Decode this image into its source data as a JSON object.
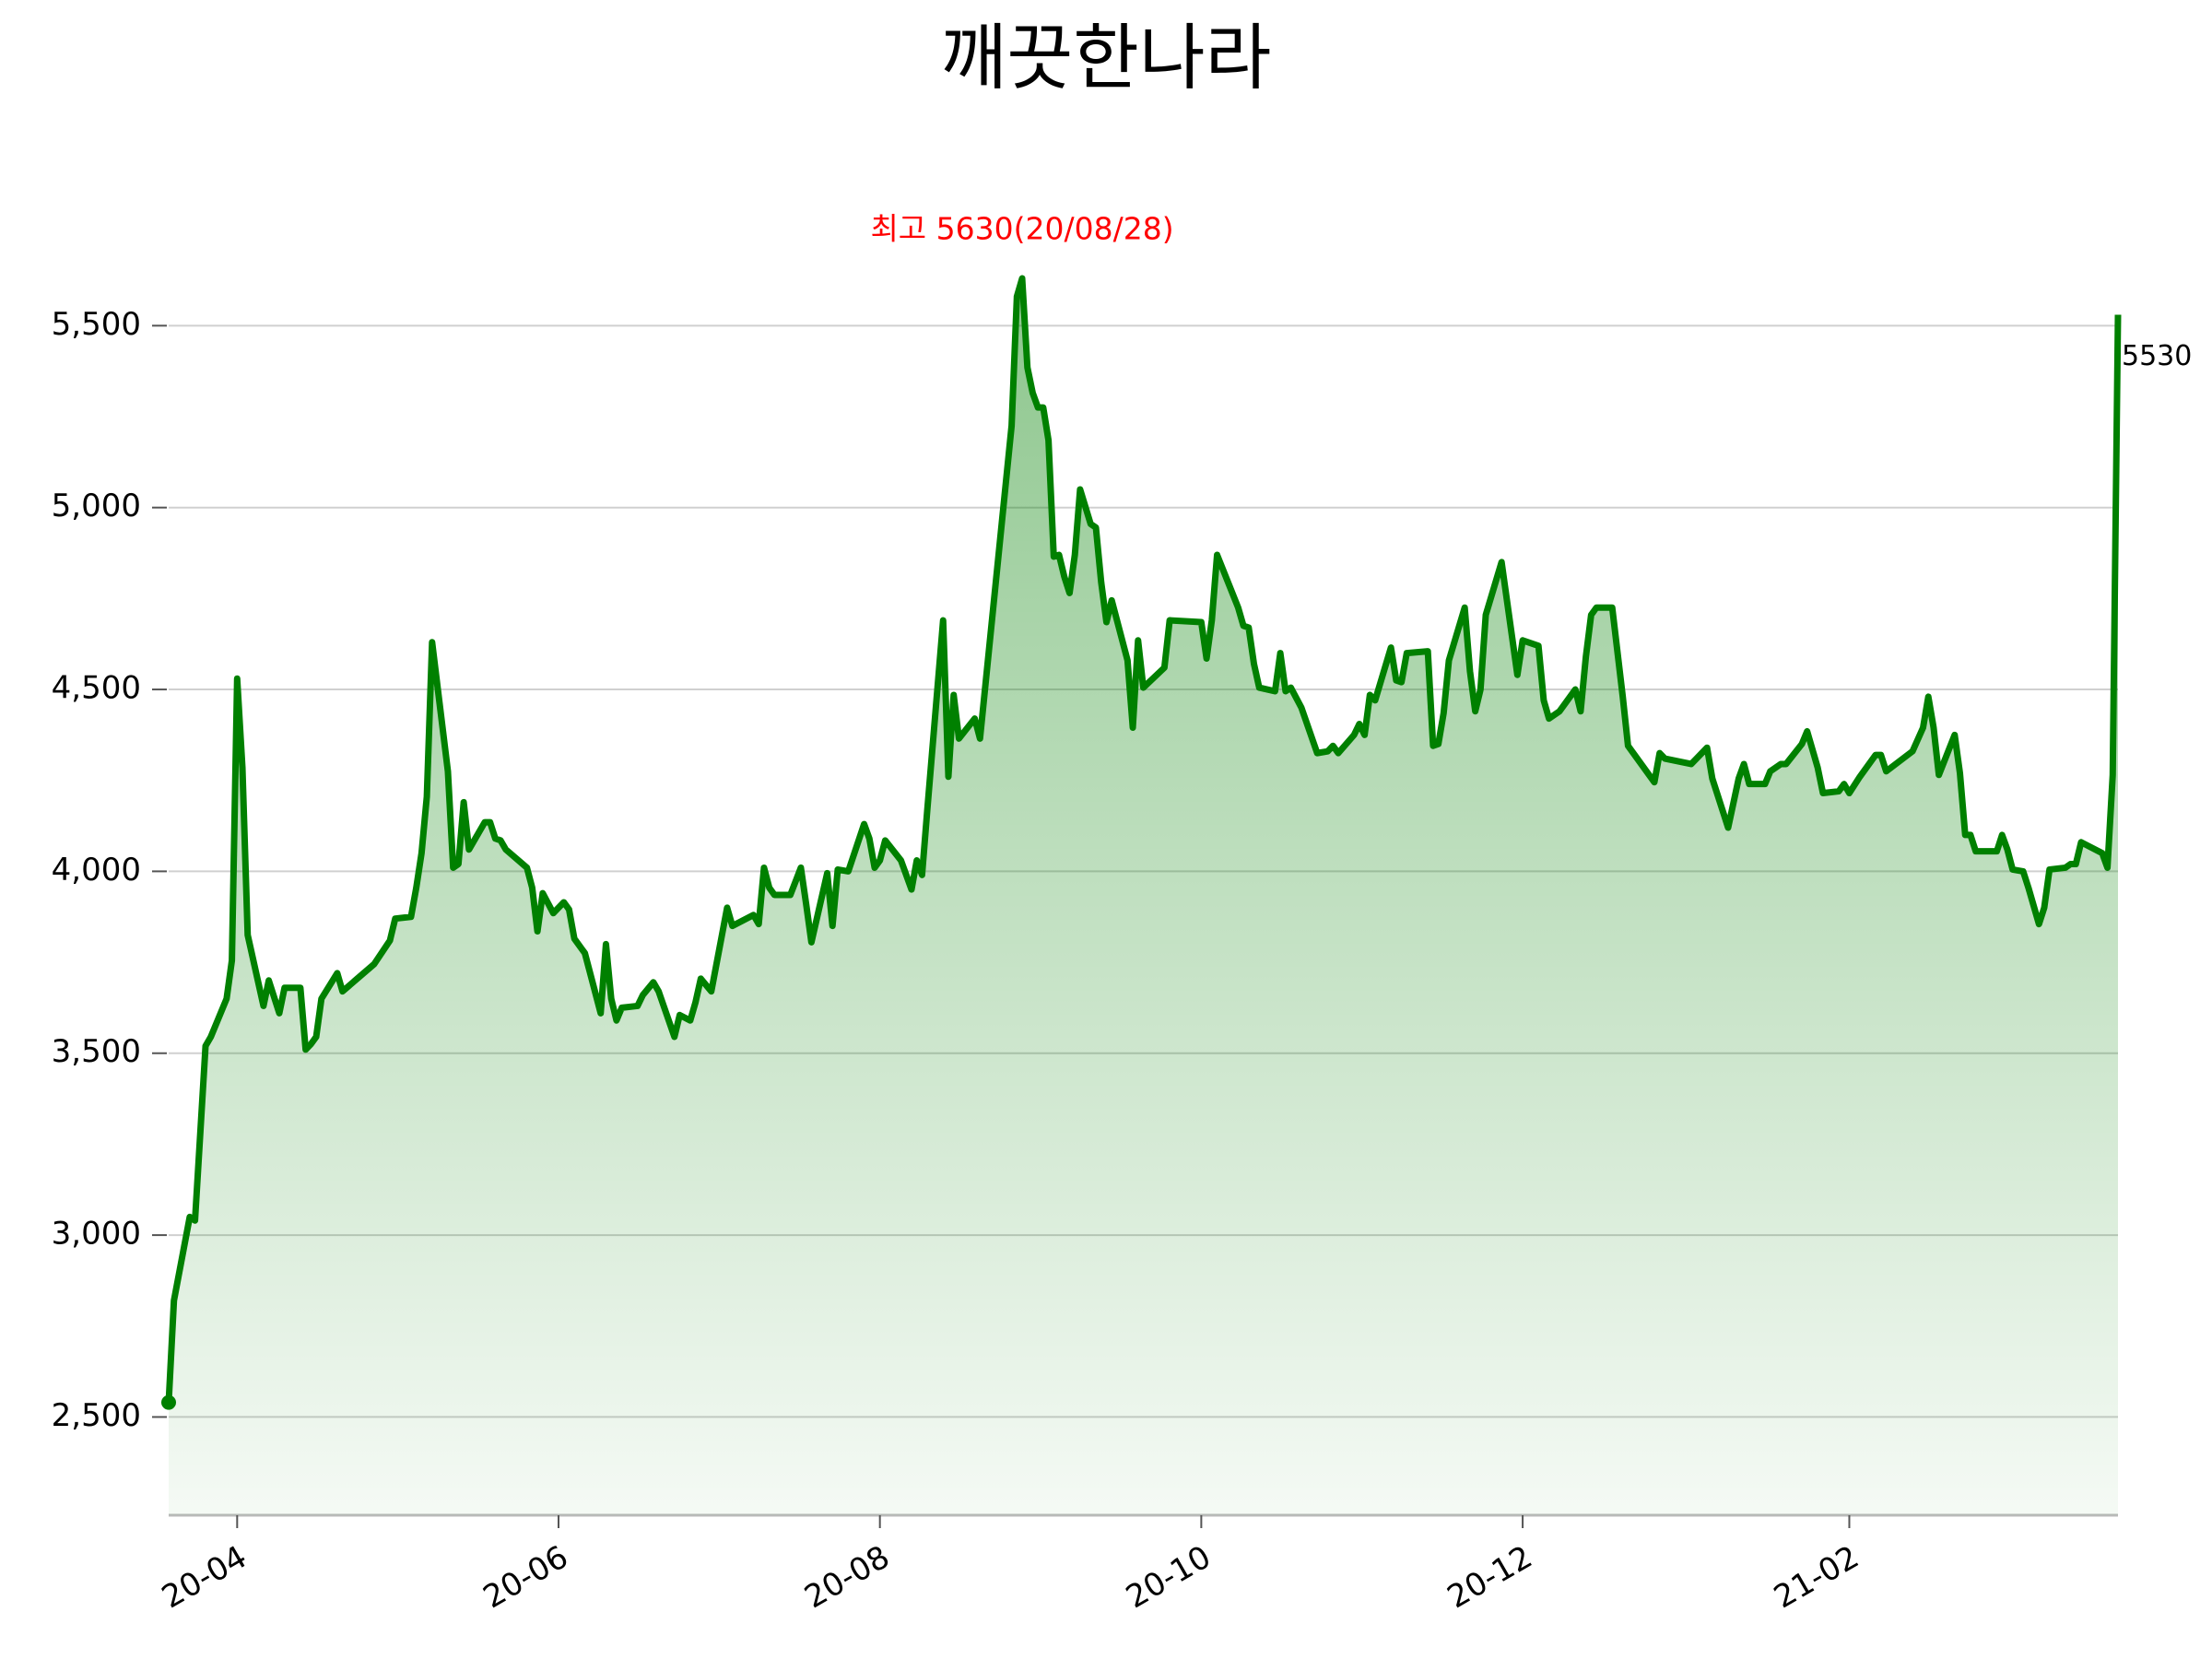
{
  "chart_data": {
    "type": "line",
    "title": "깨끗한나라",
    "color": "#008000",
    "grid": true,
    "x": [
      "2020-03-19",
      "2020-03-20",
      "2020-03-23",
      "2020-03-24",
      "2020-03-26",
      "2020-03-27",
      "2020-03-30",
      "2020-03-31",
      "2020-04-01",
      "2020-04-02",
      "2020-04-03",
      "2020-04-06",
      "2020-04-07",
      "2020-04-09",
      "2020-04-10",
      "2020-04-13",
      "2020-04-14",
      "2020-04-15",
      "2020-04-16",
      "2020-04-17",
      "2020-04-20",
      "2020-04-21",
      "2020-04-27",
      "2020-04-30",
      "2020-05-01",
      "2020-05-04",
      "2020-05-05",
      "2020-05-06",
      "2020-05-07",
      "2020-05-08",
      "2020-05-11",
      "2020-05-12",
      "2020-05-13",
      "2020-05-14",
      "2020-05-15",
      "2020-05-18",
      "2020-05-19",
      "2020-05-20",
      "2020-05-21",
      "2020-05-22",
      "2020-05-26",
      "2020-05-27",
      "2020-05-28",
      "2020-05-29",
      "2020-05-31",
      "2020-06-02",
      "2020-06-03",
      "2020-06-04",
      "2020-06-06",
      "2020-06-09",
      "2020-06-10",
      "2020-06-11",
      "2020-06-12",
      "2020-06-13",
      "2020-06-16",
      "2020-06-17",
      "2020-06-19",
      "2020-06-20",
      "2020-06-23",
      "2020-06-24",
      "2020-06-26",
      "2020-06-27",
      "2020-06-28",
      "2020-06-30",
      "2020-07-03",
      "2020-07-04",
      "2020-07-08",
      "2020-07-09",
      "2020-07-10",
      "2020-07-11",
      "2020-07-12",
      "2020-07-15",
      "2020-07-17",
      "2020-07-18",
      "2020-07-19",
      "2020-07-22",
      "2020-07-23",
      "2020-07-24",
      "2020-07-26",
      "2020-07-29",
      "2020-07-30",
      "2020-07-31",
      "2020-08-01",
      "2020-08-02",
      "2020-08-05",
      "2020-08-07",
      "2020-08-08",
      "2020-08-09",
      "2020-08-10",
      "2020-08-13",
      "2020-08-14",
      "2020-08-15",
      "2020-08-16",
      "2020-08-19",
      "2020-08-20",
      "2020-08-26",
      "2020-08-27",
      "2020-08-28",
      "2020-08-29",
      "2020-08-30",
      "2020-08-31",
      "2020-09-01",
      "2020-09-02",
      "2020-09-03",
      "2020-09-04",
      "2020-09-05",
      "2020-09-06",
      "2020-09-07",
      "2020-09-08",
      "2020-09-10",
      "2020-09-11",
      "2020-09-12",
      "2020-09-13",
      "2020-09-14",
      "2020-09-17",
      "2020-09-18",
      "2020-09-19",
      "2020-09-20",
      "2020-09-24",
      "2020-09-25",
      "2020-10-01",
      "2020-10-02",
      "2020-10-03",
      "2020-10-04",
      "2020-10-08",
      "2020-10-09",
      "2020-10-10",
      "2020-10-11",
      "2020-10-12",
      "2020-10-15",
      "2020-10-16",
      "2020-10-17",
      "2020-10-18",
      "2020-10-20",
      "2020-10-23",
      "2020-10-25",
      "2020-10-26",
      "2020-10-27",
      "2020-10-30",
      "2020-10-31",
      "2020-11-01",
      "2020-11-02",
      "2020-11-03",
      "2020-11-06",
      "2020-11-07",
      "2020-11-08",
      "2020-11-09",
      "2020-11-13",
      "2020-11-14",
      "2020-11-15",
      "2020-11-16",
      "2020-11-17",
      "2020-11-20",
      "2020-11-21",
      "2020-11-22",
      "2020-11-23",
      "2020-11-24",
      "2020-11-27",
      "2020-11-30",
      "2020-12-01",
      "2020-12-04",
      "2020-12-05",
      "2020-12-06",
      "2020-12-08",
      "2020-12-11",
      "2020-12-12",
      "2020-12-13",
      "2020-12-14",
      "2020-12-15",
      "2020-12-18",
      "2020-12-20",
      "2020-12-21",
      "2020-12-26",
      "2020-12-27",
      "2020-12-28",
      "2021-01-02",
      "2021-01-03",
      "2021-01-05",
      "2021-01-06",
      "2021-01-09",
      "2021-01-11",
      "2021-01-12",
      "2021-01-13",
      "2021-01-16",
      "2021-01-17",
      "2021-01-19",
      "2021-01-20",
      "2021-01-23",
      "2021-01-24",
      "2021-01-26",
      "2021-01-27",
      "2021-01-30",
      "2021-01-31",
      "2021-02-01",
      "2021-02-03",
      "2021-02-06",
      "2021-02-07",
      "2021-02-08",
      "2021-02-13",
      "2021-02-15",
      "2021-02-16",
      "2021-02-17",
      "2021-02-18",
      "2021-02-21",
      "2021-02-22",
      "2021-02-23",
      "2021-02-24",
      "2021-02-25",
      "2021-03-01",
      "2021-03-02",
      "2021-03-03",
      "2021-03-04",
      "2021-03-06",
      "2021-03-07",
      "2021-03-09",
      "2021-03-10",
      "2021-03-11",
      "2021-03-14",
      "2021-03-15",
      "2021-03-16",
      "2021-03-17",
      "2021-03-21",
      "2021-03-22",
      "2021-03-23",
      "2021-03-24"
    ],
    "values": [
      2540,
      2820,
      3050,
      3040,
      3520,
      3545,
      3650,
      3755,
      4530,
      4285,
      3825,
      3630,
      3700,
      3610,
      3680,
      3680,
      3510,
      3525,
      3545,
      3650,
      3720,
      3670,
      3745,
      3810,
      3870,
      3875,
      3955,
      4050,
      4205,
      4630,
      4275,
      4010,
      4020,
      4190,
      4060,
      4135,
      4135,
      4090,
      4085,
      4060,
      4010,
      3955,
      3835,
      3940,
      3885,
      3915,
      3895,
      3815,
      3775,
      3610,
      3800,
      3650,
      3590,
      3625,
      3630,
      3660,
      3695,
      3670,
      3545,
      3605,
      3590,
      3640,
      3705,
      3670,
      3900,
      3850,
      3880,
      3855,
      4010,
      3955,
      3935,
      3935,
      4010,
      3910,
      3805,
      3995,
      3850,
      4005,
      4000,
      4130,
      4090,
      4010,
      4030,
      4085,
      4030,
      3950,
      4030,
      3990,
      4170,
      4690,
      4260,
      4485,
      4365,
      4420,
      4365,
      5225,
      5580,
      5630,
      5385,
      5315,
      5275,
      5275,
      5185,
      4865,
      4870,
      4810,
      4765,
      4870,
      5050,
      4955,
      4945,
      4795,
      4685,
      4745,
      4580,
      4395,
      4635,
      4505,
      4560,
      4690,
      4685,
      4585,
      4690,
      4870,
      4725,
      4675,
      4670,
      4570,
      4505,
      4495,
      4600,
      4495,
      4505,
      4450,
      4325,
      4330,
      4345,
      4325,
      4375,
      4405,
      4375,
      4485,
      4470,
      4615,
      4525,
      4520,
      4600,
      4605,
      4345,
      4350,
      4435,
      4580,
      4725,
      4550,
      4440,
      4500,
      4705,
      4850,
      4540,
      4635,
      4620,
      4470,
      4420,
      4440,
      4500,
      4440,
      4590,
      4705,
      4725,
      4725,
      4480,
      4345,
      4245,
      4325,
      4310,
      4295,
      4310,
      4340,
      4255,
      4120,
      4255,
      4295,
      4240,
      4240,
      4275,
      4295,
      4295,
      4350,
      4385,
      4285,
      4215,
      4220,
      4240,
      4215,
      4260,
      4320,
      4320,
      4275,
      4330,
      4395,
      4480,
      4395,
      4265,
      4375,
      4270,
      4100,
      4100,
      4055,
      4055,
      4100,
      4060,
      4005,
      4000,
      3955,
      3855,
      3900,
      4005,
      4010,
      4020,
      4020,
      4080,
      4050,
      4010,
      4265,
      5530
    ],
    "xlim": [
      "2020-03-19",
      "2021-03-24"
    ],
    "xticks": [
      {
        "value": "2020-04-01",
        "label": "20-04"
      },
      {
        "value": "2020-06-01",
        "label": "20-06"
      },
      {
        "value": "2020-08-01",
        "label": "20-08"
      },
      {
        "value": "2020-10-01",
        "label": "20-10"
      },
      {
        "value": "2020-12-01",
        "label": "20-12"
      },
      {
        "value": "2021-02-01",
        "label": "21-02"
      }
    ],
    "ylim": [
      2230,
      5810
    ],
    "yticks": [
      {
        "value": 2500,
        "label": "2,500"
      },
      {
        "value": 3000,
        "label": "3,000"
      },
      {
        "value": 3500,
        "label": "3,500"
      },
      {
        "value": 4000,
        "label": "4,000"
      },
      {
        "value": 4500,
        "label": "4,500"
      },
      {
        "value": 5000,
        "label": "5,000"
      },
      {
        "value": 5500,
        "label": "5,500"
      }
    ],
    "annotations": [
      {
        "text": "최고 5630(20/08/28)",
        "color": "#ff0000"
      },
      {
        "text": "5530",
        "color": "#000000"
      }
    ]
  }
}
